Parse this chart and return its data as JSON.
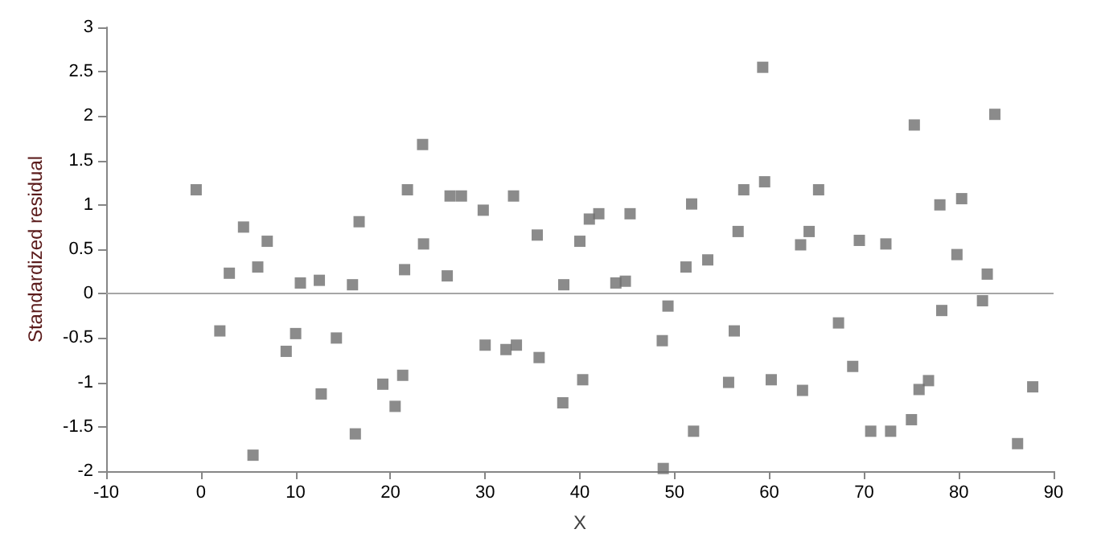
{
  "chart_data": {
    "type": "scatter",
    "xlabel": "X",
    "ylabel": "Standardized residual",
    "xlim": [
      -10,
      90
    ],
    "xticks": [
      -10,
      0,
      10,
      20,
      30,
      40,
      50,
      60,
      70,
      80,
      90
    ],
    "ylim": [
      -2,
      3
    ],
    "yticks": [
      -2,
      -1.5,
      -1,
      -0.5,
      0,
      0.5,
      1,
      1.5,
      2,
      2.5,
      3
    ],
    "grid": false,
    "marker": "square",
    "ref_lines": [
      {
        "axis": "y",
        "value": 0,
        "color": "#a6a6a6"
      }
    ],
    "series": [
      {
        "color": "#6e6e6e",
        "x": [
          -0.5,
          2,
          3,
          4.5,
          5.5,
          6,
          7,
          9,
          10,
          10.5,
          12.5,
          12.7,
          14.3,
          16,
          16.3,
          16.7,
          19.2,
          20.5,
          21.3,
          21.5,
          21.8,
          23.4,
          23.5,
          26,
          26.3,
          27.5,
          29.8,
          30,
          32.2,
          33,
          33.3,
          35.5,
          35.7,
          38.2,
          38.3,
          40,
          40.3,
          41,
          42,
          43.8,
          44.8,
          45.3,
          48.7,
          48.8,
          49.3,
          51.2,
          51.8,
          52,
          53.5,
          55.7,
          56.3,
          56.7,
          57.3,
          59.3,
          59.5,
          60.2,
          63.3,
          63.5,
          64.2,
          65.2,
          67.3,
          68.8,
          69.5,
          70.7,
          72.3,
          72.8,
          75,
          75.3,
          75.8,
          76.8,
          78,
          78.2,
          79.8,
          80.3,
          82.5,
          83,
          83.8,
          86.2,
          87.8
        ],
        "values": [
          1.17,
          -0.42,
          0.23,
          0.75,
          -1.82,
          0.3,
          0.59,
          -0.65,
          -0.45,
          0.12,
          0.15,
          -1.13,
          -0.5,
          0.1,
          -1.58,
          0.81,
          -1.02,
          -1.27,
          -0.92,
          0.27,
          1.17,
          1.68,
          0.56,
          0.2,
          1.1,
          1.1,
          0.94,
          -0.58,
          -0.63,
          1.1,
          -0.58,
          0.66,
          -0.72,
          -1.23,
          0.1,
          0.59,
          -0.97,
          0.84,
          0.9,
          0.12,
          0.14,
          0.9,
          -0.53,
          -1.97,
          -0.14,
          0.3,
          1.01,
          -1.55,
          0.38,
          -1.0,
          -0.42,
          0.7,
          1.17,
          2.55,
          1.26,
          -0.97,
          0.55,
          -1.09,
          0.7,
          1.17,
          -0.33,
          -0.82,
          0.6,
          -1.55,
          0.56,
          -1.55,
          -1.42,
          1.9,
          -1.08,
          -0.98,
          1.0,
          -0.19,
          0.44,
          1.07,
          -0.08,
          0.22,
          2.02,
          -1.69,
          -1.05
        ]
      }
    ]
  }
}
